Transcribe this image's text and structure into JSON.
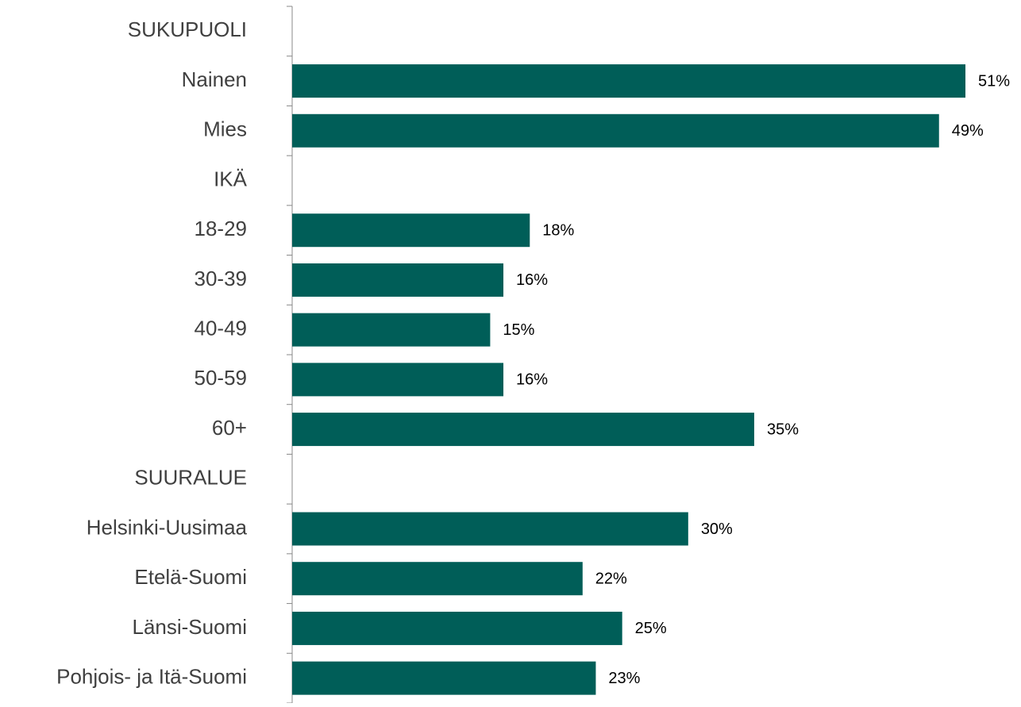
{
  "chart_data": {
    "type": "bar",
    "orientation": "horizontal",
    "color": "#005e58",
    "categories": [
      "SUKUPUOLI",
      "Nainen",
      "Mies",
      "IKÄ",
      "18-29",
      "30-39",
      "40-49",
      "50-59",
      "60+",
      "SUURALUE",
      "Helsinki-Uusimaa",
      "Etelä-Suomi",
      "Länsi-Suomi",
      "Pohjois- ja Itä-Suomi"
    ],
    "values": [
      null,
      51,
      49,
      null,
      18,
      16,
      15,
      16,
      35,
      null,
      30,
      22,
      25,
      23
    ],
    "value_labels": [
      null,
      "51%",
      "49%",
      null,
      "18%",
      "16%",
      "15%",
      "16%",
      "35%",
      null,
      "30%",
      "22%",
      "25%",
      "23%"
    ]
  }
}
